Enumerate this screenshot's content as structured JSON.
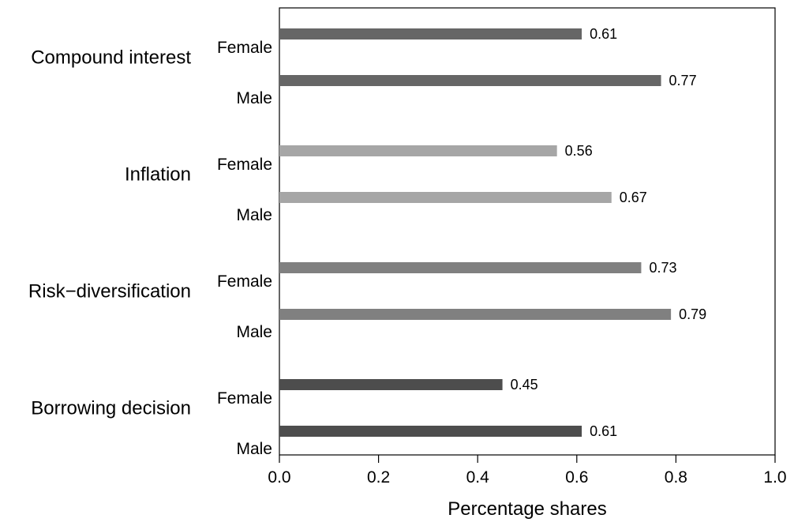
{
  "chart_data": {
    "type": "bar",
    "orientation": "horizontal",
    "title": "",
    "xlabel": "Percentage shares",
    "ylabel": "",
    "xlim": [
      0.0,
      1.0
    ],
    "x_ticks": [
      0.0,
      0.2,
      0.4,
      0.6,
      0.8,
      1.0
    ],
    "x_tick_labels": [
      "0.0",
      "0.2",
      "0.4",
      "0.6",
      "0.8",
      "1.0"
    ],
    "grid": false,
    "legend": "none",
    "categories": [
      {
        "name": "Compound interest",
        "color": "#666666",
        "bars": [
          {
            "group": "Female",
            "value": 0.61,
            "value_label": "0.61"
          },
          {
            "group": "Male",
            "value": 0.77,
            "value_label": "0.77"
          }
        ]
      },
      {
        "name": "Inflation",
        "color": "#a6a6a6",
        "bars": [
          {
            "group": "Female",
            "value": 0.56,
            "value_label": "0.56"
          },
          {
            "group": "Male",
            "value": 0.67,
            "value_label": "0.67"
          }
        ]
      },
      {
        "name": "Risk−diversification",
        "color": "#808080",
        "bars": [
          {
            "group": "Female",
            "value": 0.73,
            "value_label": "0.73"
          },
          {
            "group": "Male",
            "value": 0.79,
            "value_label": "0.79"
          }
        ]
      },
      {
        "name": "Borrowing decision",
        "color": "#4d4d4d",
        "bars": [
          {
            "group": "Female",
            "value": 0.45,
            "value_label": "0.45"
          },
          {
            "group": "Male",
            "value": 0.61,
            "value_label": "0.61"
          }
        ]
      }
    ]
  }
}
